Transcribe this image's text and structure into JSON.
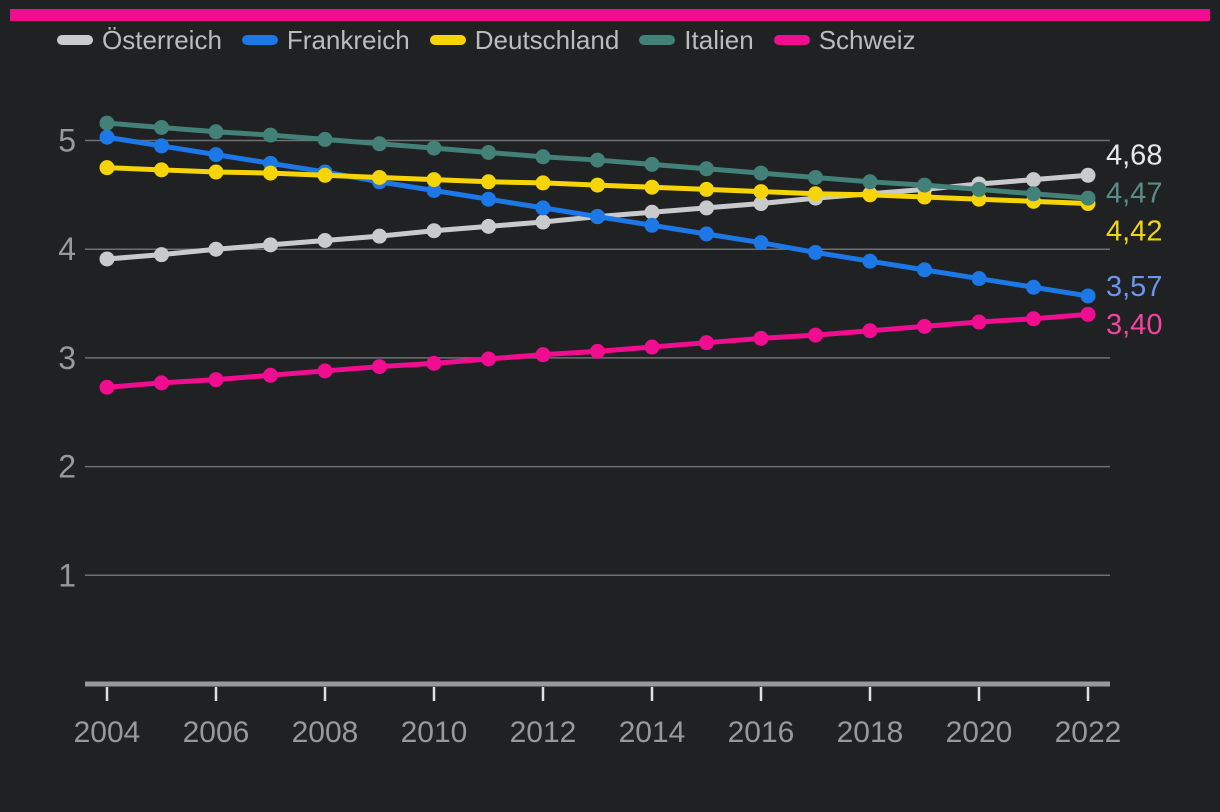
{
  "page": {
    "background": "#1f2123"
  },
  "top_bar": {
    "color": "#f00d90"
  },
  "legend": {
    "items": [
      {
        "label": "Österreich",
        "color": "#c9cacb"
      },
      {
        "label": "Frankreich",
        "color": "#1d78e7"
      },
      {
        "label": "Deutschland",
        "color": "#f6d405"
      },
      {
        "label": "Italien",
        "color": "#428078"
      },
      {
        "label": "Schweiz",
        "color": "#f00d90"
      }
    ]
  },
  "chart_data": {
    "type": "line",
    "title": "",
    "xlabel": "",
    "ylabel": "",
    "grid": "horizontal",
    "legend_position": "top",
    "xlim": [
      2004,
      2022
    ],
    "ylim": [
      0,
      5.5
    ],
    "x": [
      2004,
      2005,
      2006,
      2007,
      2008,
      2009,
      2010,
      2011,
      2012,
      2013,
      2014,
      2015,
      2016,
      2017,
      2018,
      2019,
      2020,
      2021,
      2022
    ],
    "x_ticks": [
      2004,
      2006,
      2008,
      2010,
      2012,
      2014,
      2016,
      2018,
      2020,
      2022
    ],
    "x_tick_labels": [
      "2004",
      "2006",
      "2008",
      "2010",
      "2012",
      "2014",
      "2016",
      "2018",
      "2020",
      "2022"
    ],
    "y_ticks": [
      1,
      2,
      3,
      4,
      5
    ],
    "y_tick_labels": [
      "1",
      "2",
      "3",
      "4",
      "5"
    ],
    "series": [
      {
        "name": "Österreich",
        "color": "#c9cacb",
        "end_label": "4,68",
        "end_label_color": "#e7e8e9",
        "values": [
          3.91,
          3.95,
          4.0,
          4.04,
          4.08,
          4.12,
          4.17,
          4.21,
          4.25,
          4.3,
          4.34,
          4.38,
          4.42,
          4.47,
          4.51,
          4.55,
          4.6,
          4.64,
          4.68
        ]
      },
      {
        "name": "Frankreich",
        "color": "#1d78e7",
        "end_label": "3,57",
        "end_label_color": "#6b95ef",
        "values": [
          5.03,
          4.95,
          4.87,
          4.79,
          4.71,
          4.62,
          4.54,
          4.46,
          4.38,
          4.3,
          4.22,
          4.14,
          4.06,
          3.97,
          3.89,
          3.81,
          3.73,
          3.65,
          3.57
        ]
      },
      {
        "name": "Deutschland",
        "color": "#f6d405",
        "end_label": "4,42",
        "end_label_color": "#f2d411",
        "values": [
          4.75,
          4.73,
          4.71,
          4.7,
          4.68,
          4.66,
          4.64,
          4.62,
          4.61,
          4.59,
          4.57,
          4.55,
          4.53,
          4.51,
          4.5,
          4.48,
          4.46,
          4.44,
          4.42
        ]
      },
      {
        "name": "Italien",
        "color": "#428078",
        "end_label": "4,47",
        "end_label_color": "#578e87",
        "values": [
          5.16,
          5.12,
          5.08,
          5.05,
          5.01,
          4.97,
          4.93,
          4.89,
          4.85,
          4.82,
          4.78,
          4.74,
          4.7,
          4.66,
          4.62,
          4.59,
          4.55,
          4.51,
          4.47
        ]
      },
      {
        "name": "Schweiz",
        "color": "#f00d90",
        "end_label": "3,40",
        "end_label_color": "#f2459f",
        "values": [
          2.73,
          2.77,
          2.8,
          2.84,
          2.88,
          2.92,
          2.95,
          2.99,
          3.03,
          3.06,
          3.1,
          3.14,
          3.18,
          3.21,
          3.25,
          3.29,
          3.33,
          3.36,
          3.4
        ]
      }
    ]
  }
}
